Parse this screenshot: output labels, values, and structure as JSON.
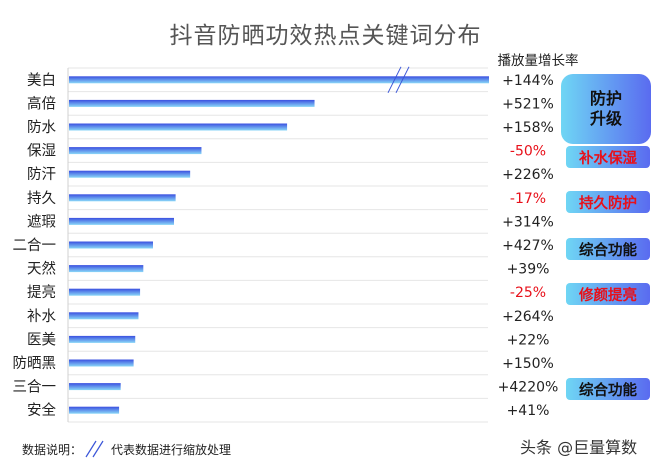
{
  "chart_data": {
    "type": "bar",
    "orientation": "horizontal",
    "title": "抖音防晒功效热点关键词分布",
    "growth_header": "播放量增长率",
    "categories": [
      "美白",
      "高倍",
      "防水",
      "保湿",
      "防汗",
      "持久",
      "遮瑕",
      "二合一",
      "天然",
      "提亮",
      "补水",
      "医美",
      "防晒黑",
      "三合一",
      "安全"
    ],
    "values": [
      2.6,
      1.52,
      1.35,
      0.82,
      0.75,
      0.66,
      0.65,
      0.52,
      0.46,
      0.44,
      0.43,
      0.41,
      0.4,
      0.32,
      0.31
    ],
    "value_axis_visible": false,
    "growth_rates": [
      "+144%",
      "+521%",
      "+158%",
      "-50%",
      "+226%",
      "-17%",
      "+314%",
      "+427%",
      "+39%",
      "-25%",
      "+264%",
      "+22%",
      "+150%",
      "+4220%",
      "+41%"
    ],
    "negative_color": "#e8101a",
    "positive_color": "#222222",
    "bar_gradient": [
      "#3a4fe0",
      "#8ad8f8"
    ],
    "broken_bars": [
      "美白"
    ],
    "grid": true
  },
  "tags": [
    {
      "text": "防护\n升级",
      "style": "big"
    },
    {
      "text": "补水保湿",
      "style": "red"
    },
    {
      "text": "持久防护",
      "style": "red"
    },
    {
      "text": "综合功能",
      "style": "dark"
    },
    {
      "text": "修颜提亮",
      "style": "red"
    },
    {
      "text": "综合功能",
      "style": "dark"
    }
  ],
  "footnote": {
    "prefix": "数据说明：",
    "suffix": "代表数据进行缩放处理"
  },
  "watermark": "头条 @巨量算数"
}
